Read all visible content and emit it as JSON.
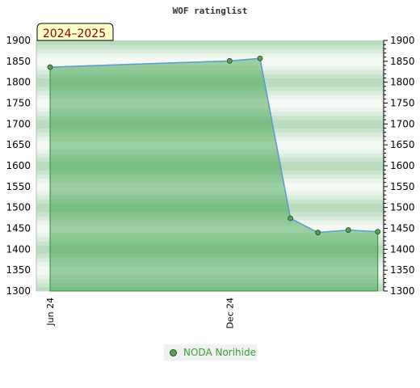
{
  "chart_data": {
    "type": "area",
    "title": "WOF ratinglist",
    "period_label": "2024–2025",
    "xlabel": "",
    "ylabel": "",
    "ylim": [
      1300,
      1900
    ],
    "y_ticks": [
      1300,
      1350,
      1400,
      1450,
      1500,
      1550,
      1600,
      1650,
      1700,
      1750,
      1800,
      1850,
      1900
    ],
    "x_ticks": [
      {
        "label": "Jun 24",
        "date": "2024-06-01"
      },
      {
        "label": "Dec 24",
        "date": "2024-12-01"
      }
    ],
    "xlim": [
      "2024-05-18",
      "2025-05-07"
    ],
    "grid": true,
    "legend": "bottom-center",
    "series": [
      {
        "name": "NODA Norihide",
        "color": "#5a9e5a",
        "points": [
          {
            "x": "2024-06-01",
            "y": 1836
          },
          {
            "x": "2024-12-01",
            "y": 1851
          },
          {
            "x": "2025-01-01",
            "y": 1857
          },
          {
            "x": "2025-02-01",
            "y": 1474
          },
          {
            "x": "2025-03-01",
            "y": 1440
          },
          {
            "x": "2025-04-01",
            "y": 1446
          },
          {
            "x": "2025-05-01",
            "y": 1442
          }
        ]
      }
    ]
  }
}
